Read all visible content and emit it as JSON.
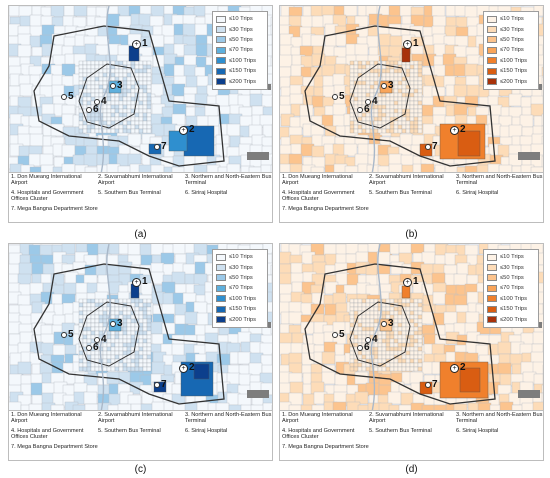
{
  "legend": [
    "≤10 Trips",
    "≤30 Trips",
    "≤50 Trips",
    "≤70 Trips",
    "≤100 Trips",
    "≤150 Trips",
    "≤200 Trips"
  ],
  "blue_scale": [
    "#f4f8fc",
    "#cfe1f0",
    "#9cc9e8",
    "#5fb0dd",
    "#2f8fcf",
    "#1768b3",
    "#0c3f8c"
  ],
  "orange_scale": [
    "#fdf2e6",
    "#fddcb8",
    "#fcc48e",
    "#f9a55a",
    "#f0802c",
    "#d95d12",
    "#a8320a"
  ],
  "locations": [
    "1. Don Mueang International Airport",
    "2. Suvarnabhumi International Airport",
    "3. Northern and North-Eastern Bus Terminal",
    "4. Hospitals and Government Offices Cluster",
    "5. Southern Bus Terminal",
    "6. Siriraj Hospital",
    "7. Mega Bangna Department Store"
  ],
  "marker_numbers": [
    "1",
    "2",
    "3",
    "4",
    "5",
    "6",
    "7"
  ],
  "panels": [
    {
      "caption": "(a)"
    },
    {
      "caption": "(b)"
    },
    {
      "caption": "(c)"
    },
    {
      "caption": "(d)"
    }
  ]
}
